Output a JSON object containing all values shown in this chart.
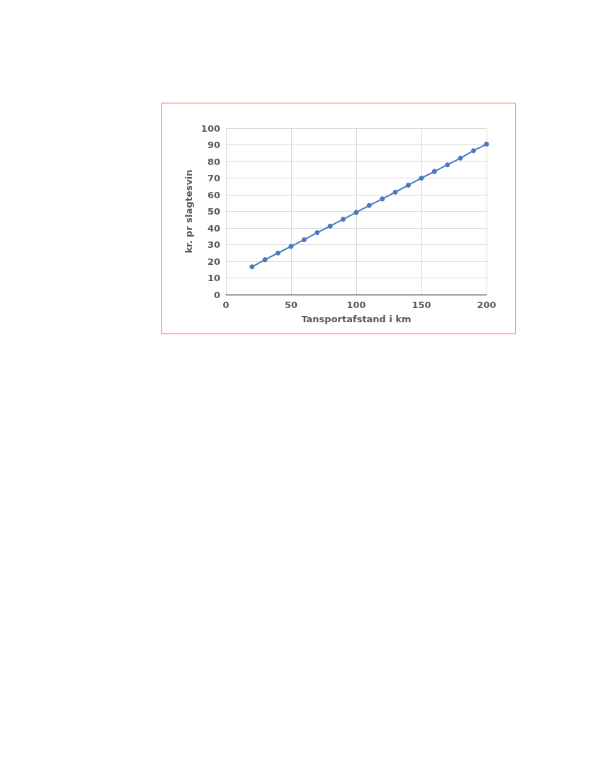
{
  "chart_data": {
    "type": "line",
    "xlabel": "Tansportafstand i km",
    "ylabel": "kr. pr slagtesvin",
    "x": [
      20,
      30,
      40,
      50,
      60,
      70,
      80,
      90,
      100,
      110,
      120,
      130,
      140,
      150,
      160,
      170,
      180,
      190,
      200
    ],
    "series": [
      {
        "color": "#4a78be",
        "values": [
          16.7,
          21,
          25,
          29,
          33,
          37.2,
          41.2,
          45.3,
          49.4,
          53.6,
          57.5,
          61.6,
          65.8,
          70,
          74,
          78,
          82,
          86.5,
          90.4
        ]
      }
    ],
    "xlim": [
      0,
      200
    ],
    "xticks": [
      0,
      50,
      100,
      150,
      200
    ],
    "ylim": [
      0,
      100
    ],
    "yticks": [
      0,
      10,
      20,
      30,
      40,
      50,
      60,
      70,
      80,
      90,
      100
    ],
    "grid": true,
    "marker": "circle",
    "line_style": "solid"
  }
}
